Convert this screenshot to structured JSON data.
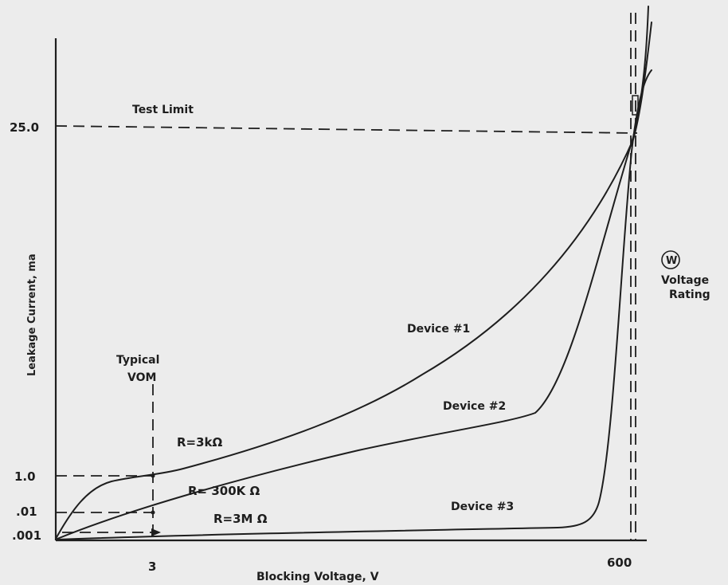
{
  "chart_data": {
    "type": "line",
    "xlabel": "Blocking Voltage, V",
    "ylabel": "Leakage Current, ma",
    "x_ticks": [
      "3",
      "600"
    ],
    "y_ticks": [
      ".001",
      ".01",
      "1.0",
      "25.0"
    ],
    "series": [
      {
        "name": "Device #1"
      },
      {
        "name": "Device #2"
      },
      {
        "name": "Device #3"
      }
    ],
    "annotations": {
      "test_limit": "Test Limit",
      "typical_vom_line1": "Typical",
      "typical_vom_line2": "VOM",
      "r_3k": "R=3kΩ",
      "r_300k": "R= 300K Ω",
      "r_3m": "R=3M Ω",
      "voltage_rating_symbol": "W",
      "voltage_rating_line1": "Voltage",
      "voltage_rating_line2": "Rating"
    },
    "colors": {
      "background": "#ececec",
      "ink": "#1e1e1e"
    }
  }
}
